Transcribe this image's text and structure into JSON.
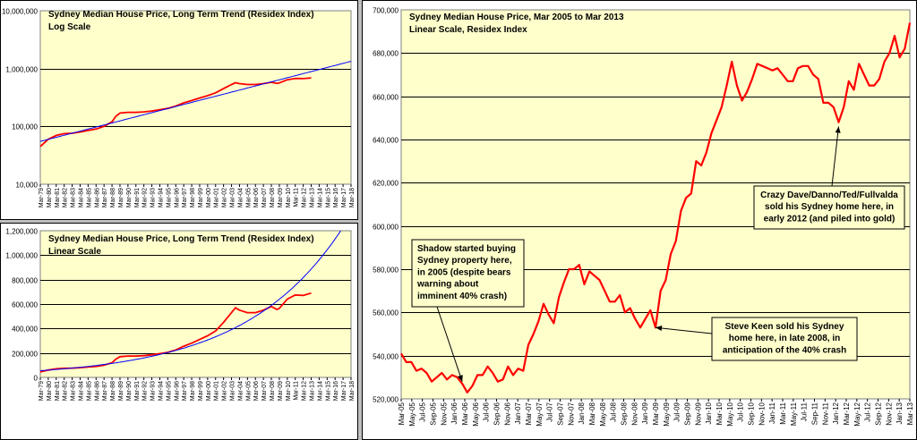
{
  "chart_data": [
    {
      "id": "log",
      "type": "line",
      "title": "Sydney Median House Price, Long Term Trend (Residex Index)",
      "subtitle": "Log Scale",
      "yscale": "log",
      "ylim": [
        10000,
        10000000
      ],
      "yticks": [
        10000,
        100000,
        1000000,
        10000000
      ],
      "ytick_labels": [
        "10,000",
        "100,000",
        "1,000,000",
        "10,000,000"
      ],
      "x_labels": [
        "Mar-79",
        "Mar-80",
        "Mar-81",
        "Mar-82",
        "Mar-83",
        "Mar-84",
        "Mar-85",
        "Mar-86",
        "Mar-87",
        "Mar-88",
        "Mar-89",
        "Mar-90",
        "Mar-91",
        "Mar-92",
        "Mar-93",
        "Mar-94",
        "Mar-95",
        "Mar-96",
        "Mar-97",
        "Mar-98",
        "Mar-99",
        "Mar-00",
        "Mar-01",
        "Mar-02",
        "Mar-03",
        "Mar-04",
        "Mar-05",
        "Mar-06",
        "Mar-07",
        "Mar-08",
        "Mar-09",
        "Mar-10",
        "Mar-11",
        "Mar-12",
        "Mar-13",
        "Mar-14",
        "Mar-15",
        "Mar-16",
        "Mar-17",
        "Mar-18"
      ],
      "x_range": [
        1979,
        2018
      ],
      "series": [
        {
          "name": "Residex Index",
          "color": "#ff0000",
          "x": [
            1979,
            1980,
            1981,
            1982,
            1983,
            1984,
            1985,
            1986,
            1987,
            1988,
            1988.5,
            1989,
            1990,
            1991,
            1992,
            1993,
            1994,
            1995,
            1996,
            1997,
            1998,
            1999,
            2000,
            2001,
            2002,
            2003,
            2003.5,
            2004,
            2005,
            2006,
            2007,
            2008,
            2008.7,
            2009,
            2010,
            2011,
            2012,
            2013
          ],
          "y": [
            45000,
            60000,
            70000,
            75000,
            76000,
            80000,
            85000,
            90000,
            100000,
            120000,
            150000,
            170000,
            175000,
            175000,
            178000,
            185000,
            195000,
            205000,
            225000,
            255000,
            280000,
            310000,
            340000,
            380000,
            450000,
            530000,
            570000,
            550000,
            530000,
            530000,
            550000,
            580000,
            555000,
            565000,
            640000,
            675000,
            670000,
            690000
          ]
        },
        {
          "name": "Long Term Trend",
          "color": "#0000ff",
          "trend_start": [
            1979,
            55000
          ],
          "annual_growth": 0.0852,
          "x_end": 2018
        }
      ]
    },
    {
      "id": "lin",
      "type": "line",
      "title": "Sydney Median House Price, Long Term Trend (Residex Index)",
      "subtitle": "Linear Scale",
      "yscale": "linear",
      "ylim": [
        0,
        1200000
      ],
      "yticks": [
        0,
        200000,
        400000,
        600000,
        800000,
        1000000,
        1200000
      ],
      "ytick_labels": [
        "0",
        "200,000",
        "400,000",
        "600,000",
        "800,000",
        "1,000,000",
        "1,200,000"
      ],
      "x_labels": [
        "Mar-79",
        "Mar-80",
        "Mar-81",
        "Mar-82",
        "Mar-83",
        "Mar-84",
        "Mar-85",
        "Mar-86",
        "Mar-87",
        "Mar-88",
        "Mar-89",
        "Mar-90",
        "Mar-91",
        "Mar-92",
        "Mar-93",
        "Mar-94",
        "Mar-95",
        "Mar-96",
        "Mar-97",
        "Mar-98",
        "Mar-99",
        "Mar-00",
        "Mar-01",
        "Mar-02",
        "Mar-03",
        "Mar-04",
        "Mar-05",
        "Mar-06",
        "Mar-07",
        "Mar-08",
        "Mar-09",
        "Mar-10",
        "Mar-11",
        "Mar-12",
        "Mar-13",
        "Mar-14",
        "Mar-15",
        "Mar-16",
        "Mar-17",
        "Mar-18"
      ],
      "x_range": [
        1979,
        2018
      ],
      "series": [
        {
          "name": "Residex Index",
          "color": "#ff0000",
          "x": [
            1979,
            1980,
            1981,
            1982,
            1983,
            1984,
            1985,
            1986,
            1987,
            1988,
            1988.5,
            1989,
            1990,
            1991,
            1992,
            1993,
            1994,
            1995,
            1996,
            1997,
            1998,
            1999,
            2000,
            2001,
            2002,
            2003,
            2003.5,
            2004,
            2005,
            2006,
            2007,
            2008,
            2008.7,
            2009,
            2010,
            2011,
            2012,
            2013
          ],
          "y": [
            45000,
            60000,
            70000,
            75000,
            76000,
            80000,
            85000,
            90000,
            100000,
            120000,
            150000,
            170000,
            175000,
            175000,
            178000,
            185000,
            195000,
            205000,
            225000,
            255000,
            280000,
            310000,
            340000,
            380000,
            450000,
            530000,
            570000,
            550000,
            530000,
            530000,
            550000,
            580000,
            555000,
            565000,
            640000,
            675000,
            670000,
            690000
          ]
        },
        {
          "name": "Long Term Trend",
          "color": "#0000ff",
          "trend_start": [
            1979,
            55000
          ],
          "annual_growth": 0.0852,
          "x_end": 2018
        }
      ]
    },
    {
      "id": "main",
      "type": "line",
      "title": "Sydney Median House Price, Mar 2005 to Mar 2013",
      "subtitle": "Linear Scale, Residex Index",
      "yscale": "linear",
      "ylim": [
        520000,
        700000
      ],
      "yticks": [
        520000,
        540000,
        560000,
        580000,
        600000,
        620000,
        640000,
        660000,
        680000,
        700000
      ],
      "ytick_labels": [
        "520,000",
        "540,000",
        "560,000",
        "580,000",
        "600,000",
        "620,000",
        "640,000",
        "660,000",
        "680,000",
        "700,000"
      ],
      "x_labels": [
        "Mar-05",
        "May-05",
        "Jul-05",
        "Sep-05",
        "Nov-05",
        "Jan-06",
        "Mar-06",
        "May-06",
        "Jul-06",
        "Sep-06",
        "Nov-06",
        "Jan-07",
        "Mar-07",
        "May-07",
        "Jul-07",
        "Sep-07",
        "Nov-07",
        "Jan-08",
        "Mar-08",
        "May-08",
        "Jul-08",
        "Sep-08",
        "Nov-08",
        "Jan-09",
        "Mar-09",
        "May-09",
        "Jul-09",
        "Sep-09",
        "Nov-09",
        "Jan-10",
        "Mar-10",
        "May-10",
        "Jul-10",
        "Sep-10",
        "Nov-10",
        "Jan-11",
        "Mar-11",
        "May-11",
        "Jul-11",
        "Sep-11",
        "Nov-11",
        "Jan-12",
        "Mar-12",
        "May-12",
        "Jul-12",
        "Sep-12",
        "Nov-12",
        "Jan-13",
        "Mar-13"
      ],
      "series": [
        {
          "name": "Residex Index",
          "color": "#ff0000",
          "values": [
            541000,
            537000,
            537000,
            533000,
            534000,
            532000,
            528000,
            530000,
            532000,
            529000,
            531000,
            530000,
            527000,
            523000,
            526000,
            531000,
            531000,
            535000,
            532000,
            528000,
            529000,
            535000,
            531000,
            534000,
            533000,
            545000,
            550000,
            556000,
            564000,
            559000,
            555000,
            567000,
            574000,
            580000,
            580000,
            582000,
            573000,
            579000,
            577000,
            575000,
            570000,
            565000,
            565000,
            568000,
            560000,
            562000,
            557000,
            553000,
            557000,
            561000,
            553000,
            570000,
            575000,
            587000,
            593000,
            607000,
            613000,
            615000,
            630000,
            628000,
            634000,
            643000,
            649000,
            655000,
            665000,
            676000,
            665000,
            658000,
            662000,
            668000,
            675000,
            674000,
            673000,
            672000,
            673000,
            670000,
            667000,
            667000,
            673000,
            674000,
            674000,
            670000,
            668000,
            657000,
            657000,
            655000,
            648000,
            655000,
            667000,
            663000,
            675000,
            670000,
            665000,
            665000,
            668000,
            676000,
            680000,
            688000,
            678000,
            682000,
            694000
          ]
        }
      ],
      "annotations": [
        {
          "lines": [
            "Shadow started buying",
            "Sydney property here,",
            "in 2005 (despite bears",
            "warning about",
            "imminent 40% crash)"
          ],
          "arrow_to": {
            "index": 12,
            "value": 528000
          }
        },
        {
          "lines": [
            "Steve Keen sold his Sydney",
            "home here, in late 2008, in",
            "anticipation of the 40% crash"
          ],
          "arrow_to": {
            "index": 50,
            "value": 553000
          }
        },
        {
          "lines": [
            "Crazy Dave/Danno/Ted/Fullvalda",
            "sold his Sydney home here, in",
            "early 2012 (and piled into gold)"
          ],
          "arrow_to": {
            "index": 86,
            "value": 646000
          }
        }
      ]
    }
  ]
}
